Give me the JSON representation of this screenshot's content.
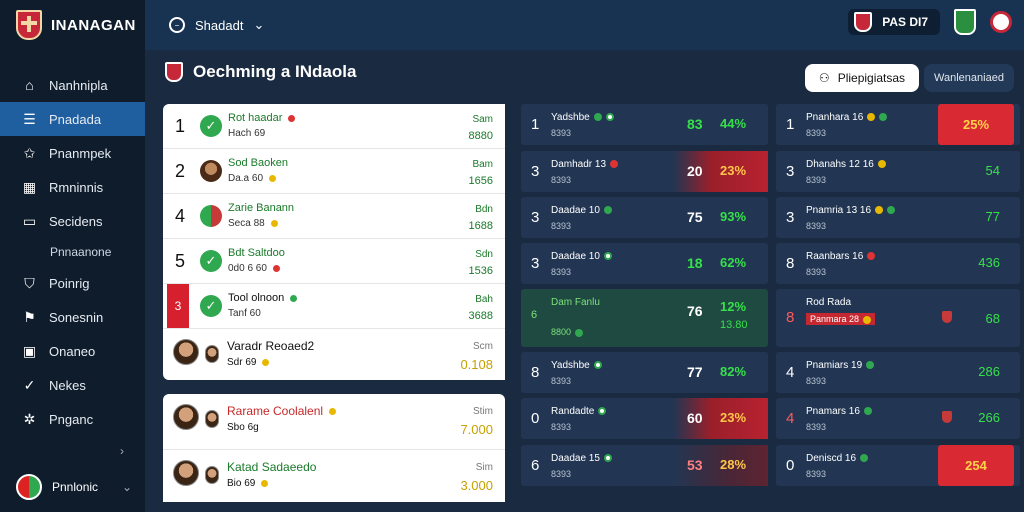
{
  "brand": {
    "name": "INANAGAN"
  },
  "sidebar": {
    "items": [
      {
        "label": "Nanhnipla",
        "icon": "home-icon",
        "active": false
      },
      {
        "label": "Pnadada",
        "icon": "list-icon",
        "active": true
      },
      {
        "label": "Pnanmpek",
        "icon": "star-icon",
        "active": false
      },
      {
        "label": "Rmninnis",
        "icon": "chart-icon",
        "active": false
      },
      {
        "label": "Secidens",
        "icon": "card-icon",
        "active": false
      },
      {
        "label": "Pnnaanone",
        "icon": "",
        "active": false,
        "sub": true
      },
      {
        "label": "Poinrig",
        "icon": "shield-icon",
        "active": false
      },
      {
        "label": "Sonesnin",
        "icon": "flag-icon",
        "active": false
      },
      {
        "label": "Onaneo",
        "icon": "calendar-icon",
        "active": false
      },
      {
        "label": "Nekes",
        "icon": "check-icon",
        "active": false
      },
      {
        "label": "Pnganc",
        "icon": "gear-icon",
        "active": false
      }
    ],
    "profile": {
      "name": "Pnnlonic"
    }
  },
  "topbar": {
    "season": "Shadadt",
    "match": "PAS DI7"
  },
  "page": {
    "title": "Oechming a INdaola",
    "primary_button": "Pliepigiatsas",
    "secondary_button": "Wanlenaniaed"
  },
  "white_table": {
    "rows": [
      {
        "rank": "1",
        "name": "Rot haadar",
        "sub": "Hach 69",
        "dot": "red",
        "stat_label": "Sam",
        "stat_value": "8880",
        "avatar": "check"
      },
      {
        "rank": "2",
        "name": "Sod Baoken",
        "sub": "Da.a 60",
        "dot": "yellow",
        "stat_label": "Bam",
        "stat_value": "1656",
        "avatar": "dark"
      },
      {
        "rank": "4",
        "name": "Zarie Banann",
        "sub": "Seca 88",
        "dot": "yellow",
        "stat_label": "Bdn",
        "stat_value": "1688",
        "avatar": "club"
      },
      {
        "rank": "5",
        "name": "Bdt Saltdoo",
        "sub": "0d0 6 60",
        "dot": "red",
        "stat_label": "Sdn",
        "stat_value": "1536",
        "avatar": "check"
      },
      {
        "rank": "3",
        "name": "Tool olnoon",
        "sub": "Tanf 60",
        "dot": "green",
        "stat_label": "Bah",
        "stat_value": "3688",
        "avatar": "check",
        "flag": true
      }
    ],
    "cards": [
      {
        "name": "Varadr Reoaed2",
        "sub": "Sdr 69",
        "stat_label": "Scm",
        "stat_value": "0.108",
        "color": "dark"
      },
      {
        "name": "Rarame Coolalenl",
        "sub": "Sbo 6g",
        "stat_label": "Stim",
        "stat_value": "7.000",
        "color": "red"
      },
      {
        "name": "Katad Sadaeedo",
        "sub": "Bio 69",
        "stat_label": "Sim",
        "stat_value": "3.000",
        "color": "green"
      }
    ]
  },
  "mid_cards": [
    {
      "rank": "1",
      "name": "Yadshbe",
      "sub": "8393",
      "score": "83",
      "pct": "44%",
      "hot": false
    },
    {
      "rank": "3",
      "name": "Damhadr 13",
      "sub": "8393",
      "score": "20",
      "pct": "23%",
      "hot": true
    },
    {
      "rank": "3",
      "name": "Daadae 10",
      "sub": "8393",
      "score": "75",
      "pct": "93%",
      "hot": false
    },
    {
      "rank": "3",
      "name": "Daadae 10",
      "sub": "8393",
      "score": "18",
      "pct": "62%",
      "hot": false
    },
    {
      "rank": "6",
      "name": "Dam Fanlu",
      "sub": "8800",
      "score": "76",
      "pct": "12%",
      "pct2": "13.80",
      "big": true
    },
    {
      "rank": "8",
      "name": "Yadshbe",
      "sub": "8393",
      "score": "77",
      "pct": "82%",
      "hot": false
    },
    {
      "rank": "0",
      "name": "Randadte",
      "sub": "8393",
      "score": "60",
      "pct": "23%",
      "hot": true
    },
    {
      "rank": "6",
      "name": "Daadae 15",
      "sub": "8393",
      "score": "53",
      "pct": "28%",
      "hot": true
    }
  ],
  "right_cards": [
    {
      "rank": "1",
      "name": "Pnanhara 16",
      "sub": "8393",
      "stat": "25%",
      "red": true
    },
    {
      "rank": "3",
      "name": "Dhanahs 12 16",
      "sub": "8393",
      "stat": "54",
      "red": false
    },
    {
      "rank": "3",
      "name": "Pnamria 13 16",
      "sub": "8393",
      "stat": "77",
      "red": false
    },
    {
      "rank": "8",
      "name": "Raanbars 16",
      "sub": "8393",
      "stat": "436",
      "red": false
    },
    {
      "rank": "8",
      "name": "Rod Rada",
      "sub": "Panmara 28",
      "stat": "68",
      "red": false,
      "big": true
    },
    {
      "rank": "4",
      "name": "Pnamiars 19",
      "sub": "8393",
      "stat": "286",
      "red": false
    },
    {
      "rank": "4",
      "name": "Pnamars 16",
      "sub": "8393",
      "stat": "266",
      "red": false
    },
    {
      "rank": "0",
      "name": "Deniscd 16",
      "sub": "8393",
      "stat": "254",
      "red": true
    }
  ]
}
